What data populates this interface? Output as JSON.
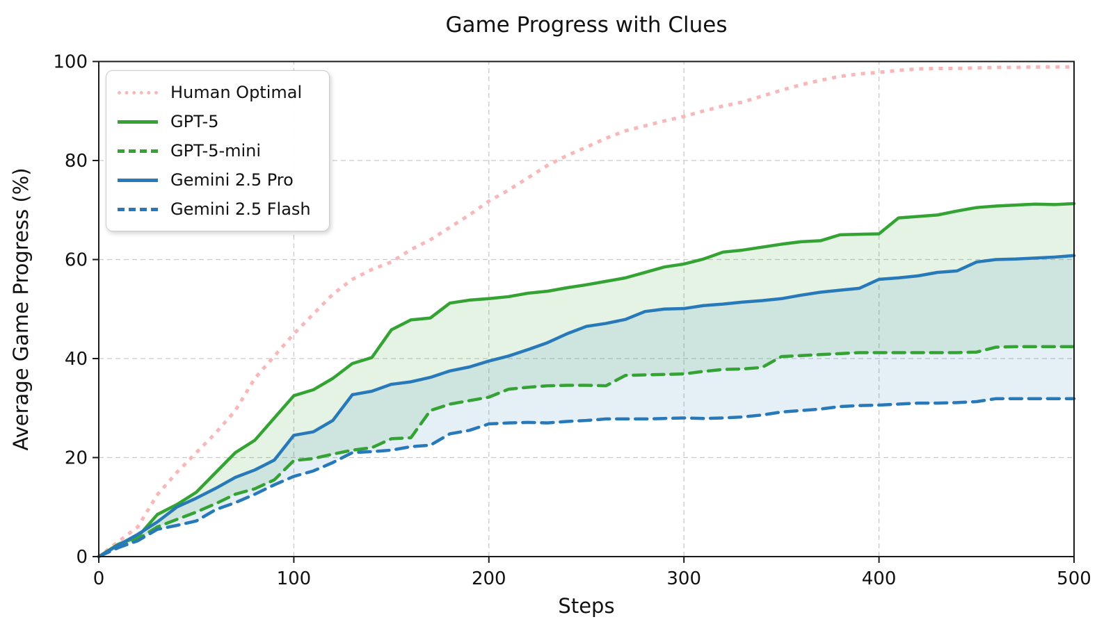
{
  "chart_data": {
    "type": "line",
    "title": "Game Progress with Clues",
    "xlabel": "Steps",
    "ylabel": "Average Game Progress (%)",
    "xlim": [
      0,
      500
    ],
    "ylim": [
      0,
      100
    ],
    "xticks": [
      0,
      100,
      200,
      300,
      400,
      500
    ],
    "yticks": [
      0,
      20,
      40,
      60,
      80,
      100
    ],
    "grid": "dashed-gray",
    "legend_position": "upper-left",
    "x": [
      0,
      10,
      20,
      30,
      40,
      50,
      60,
      70,
      80,
      90,
      100,
      110,
      120,
      130,
      140,
      150,
      160,
      170,
      180,
      190,
      200,
      210,
      220,
      230,
      240,
      250,
      260,
      270,
      280,
      290,
      300,
      310,
      320,
      330,
      340,
      350,
      360,
      370,
      380,
      390,
      400,
      410,
      420,
      430,
      440,
      450,
      460,
      470,
      480,
      490,
      500
    ],
    "series": [
      {
        "name": "Human Optimal",
        "color": "#f8b8ba",
        "style": "dotted",
        "width": 5,
        "values": [
          0,
          3,
          6,
          12.5,
          17,
          21,
          25,
          29.5,
          36,
          40.5,
          45,
          49,
          53,
          56,
          58,
          59.5,
          62,
          64,
          66.5,
          69,
          71.8,
          74,
          76.5,
          79,
          81,
          82.7,
          84.5,
          86,
          87,
          88,
          88.9,
          90,
          91,
          91.8,
          93,
          94.2,
          95.3,
          96.2,
          97,
          97.5,
          97.8,
          98.2,
          98.5,
          98.6,
          98.6,
          98.7,
          98.8,
          98.8,
          98.9,
          98.9,
          98.9
        ]
      },
      {
        "name": "GPT-5",
        "color": "#34a334",
        "style": "solid",
        "width": 4.5,
        "values": [
          0,
          2.5,
          4,
          8.5,
          10.5,
          13,
          17,
          21,
          23.5,
          28,
          32.5,
          33.7,
          36,
          39,
          40.2,
          45.8,
          47.8,
          48.2,
          51.2,
          51.8,
          52.1,
          52.5,
          53.2,
          53.6,
          54.3,
          54.9,
          55.6,
          56.3,
          57.4,
          58.5,
          59.1,
          60.1,
          61.5,
          61.9,
          62.5,
          63.1,
          63.6,
          63.8,
          65,
          65.1,
          65.2,
          68.4,
          68.7,
          69,
          69.8,
          70.5,
          70.8,
          71,
          71.2,
          71.1,
          71.3
        ]
      },
      {
        "name": "GPT-5-mini",
        "color": "#34a334",
        "style": "dashed",
        "width": 4.5,
        "values": [
          0,
          2,
          3.5,
          6,
          7.5,
          9,
          10.7,
          12.6,
          13.7,
          15.5,
          19.4,
          19.8,
          20.7,
          21.5,
          22,
          23.8,
          24,
          29.5,
          30.8,
          31.5,
          32.2,
          33.8,
          34.2,
          34.5,
          34.6,
          34.6,
          34.5,
          36.6,
          36.7,
          36.8,
          36.9,
          37.4,
          37.8,
          37.9,
          38.2,
          40.4,
          40.6,
          40.8,
          41,
          41.2,
          41.2,
          41.2,
          41.2,
          41.2,
          41.2,
          41.3,
          42.3,
          42.4,
          42.4,
          42.4,
          42.4
        ]
      },
      {
        "name": "Gemini 2.5 Pro",
        "color": "#2879b9",
        "style": "solid",
        "width": 4.5,
        "values": [
          0,
          2.3,
          4.5,
          7,
          10,
          11.8,
          13.8,
          16,
          17.5,
          19.5,
          24.5,
          25.2,
          27.5,
          32.7,
          33.4,
          34.8,
          35.3,
          36.2,
          37.5,
          38.3,
          39.5,
          40.5,
          41.8,
          43.2,
          45,
          46.5,
          47.1,
          47.9,
          49.5,
          50,
          50.1,
          50.7,
          51,
          51.4,
          51.7,
          52.1,
          52.8,
          53.4,
          53.8,
          54.2,
          56,
          56.3,
          56.7,
          57.4,
          57.7,
          59.5,
          60,
          60.1,
          60.3,
          60.5,
          60.8
        ]
      },
      {
        "name": "Gemini 2.5 Flash",
        "color": "#2879b9",
        "style": "dashed",
        "width": 4.5,
        "values": [
          0,
          1.8,
          3.2,
          5.5,
          6.3,
          7.2,
          9.5,
          10.9,
          12.6,
          14.5,
          16.2,
          17.3,
          19,
          21,
          21.2,
          21.5,
          22.2,
          22.5,
          24.8,
          25.5,
          26.8,
          27,
          27.1,
          27,
          27.3,
          27.5,
          27.8,
          27.8,
          27.8,
          27.9,
          28,
          27.9,
          28,
          28.2,
          28.6,
          29.2,
          29.5,
          29.8,
          30.3,
          30.5,
          30.6,
          30.8,
          31,
          31,
          31.1,
          31.3,
          31.9,
          31.9,
          31.9,
          31.9,
          31.9
        ]
      }
    ],
    "bands": [
      {
        "upper": 1,
        "lower": 2,
        "fill": "rgba(52,163,52,0.13)"
      },
      {
        "upper": 3,
        "lower": 4,
        "fill": "rgba(40,121,185,0.12)"
      }
    ],
    "grid_color": "#c9c9c9",
    "spine_color": "#1a1a1a"
  }
}
